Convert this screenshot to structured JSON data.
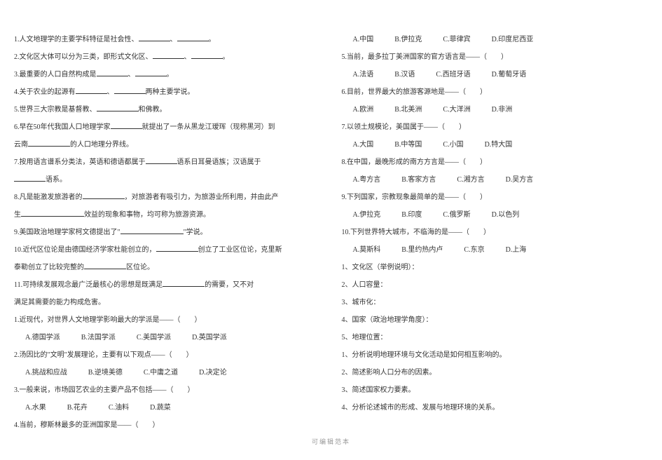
{
  "leftColumn": {
    "q1": "1.人文地理学的主要学科特征是社会性、",
    "q1_suffix": "。",
    "q2": "2.文化区大体可以分为三类，即形式文化区、",
    "q2_suffix": "。",
    "q3": "3.最重要的人口自然构成是",
    "q3_suffix": "。",
    "q4": "4.关于农业的起源有",
    "q4_suffix": "两种主要学说。",
    "q5": "5.世界三大宗教是基督教、",
    "q5_suffix": "和佛教。",
    "q6a": "6.早在50年代我国人口地理学家",
    "q6b": "就提出了一条从黑龙江瑷珲（现称黑河）到",
    "q6c": "云南",
    "q6d": "的人口地理分界线。",
    "q7a": "7.按用语言谱系分类法，英语和德语都属于",
    "q7b": "语系日耳曼语族；汉语属于",
    "q7c": "语系。",
    "q8a": "8.凡是能激发旅游者的",
    "q8b": "，对旅游者有吸引力，为旅游业所利用，并由此产",
    "q8c": "生",
    "q8d": "效益的现象和事物，均可称为旅游资源。",
    "q9a": "9.美国政治地理学家柯文德提出了\"",
    "q9b": "\"学说。",
    "q10a": "10.近代区位论是由德国经济学家杜能创立的，",
    "q10b": "创立了工业区位论，克里斯",
    "q10c": "泰勒创立了比较完整的",
    "q10d": "区位论。",
    "q11a": "11.可持续发展观念最广泛最核心的思想是既满足",
    "q11b": "的需要，又不对",
    "q11c": "满足其需要的能力构成危害。",
    "mc1": "1.近现代，对世界人文地理学影响最大的学派是——（　　）",
    "mc1_a": "A.德国学派",
    "mc1_b": "B.法国学派",
    "mc1_c": "C.美国学派",
    "mc1_d": "D.英国学派",
    "mc2": "2.汤因比的\"文明\"发展理论，主要有以下观点——（　　）",
    "mc2_a": "A.挑战和应战",
    "mc2_b": "B.逆境美德",
    "mc2_c": "C.中庸之道",
    "mc2_d": "D.决定论",
    "mc3": "3.一般来说，市场园艺农业的主要产品不包括——（　　）",
    "mc3_a": "A.水果",
    "mc3_b": "B.花卉",
    "mc3_c": "C.油料",
    "mc3_d": "D.蔬菜",
    "mc4": "4.当前，穆斯林最多的亚洲国家是——（　　）"
  },
  "rightColumn": {
    "mc4_a": "A.中国",
    "mc4_b": "B.伊拉克",
    "mc4_c": "C.菲律宾",
    "mc4_d": "D.印度尼西亚",
    "mc5": "5.当前，最多拉丁美洲国家的官方语言是——（　　）",
    "mc5_a": "A.法语",
    "mc5_b": "B.汉语",
    "mc5_c": "C.西班牙语",
    "mc5_d": "D.葡萄牙语",
    "mc6": "6.目前，世界最大的旅游客源地是——（　　）",
    "mc6_a": "A.欧洲",
    "mc6_b": "B.北美洲",
    "mc6_c": "C.大洋洲",
    "mc6_d": "D.非洲",
    "mc7": "7.以领土规模论，美国属于——（　　）",
    "mc7_a": "A.大国",
    "mc7_b": "B.中等国",
    "mc7_c": "C.小国",
    "mc7_d": "D.特大国",
    "mc8": "8.在中国，最晚形成的南方方言是——（　　）",
    "mc8_a": "A.粤方言",
    "mc8_b": "B.客家方言",
    "mc8_c": "C.湘方言",
    "mc8_d": "D.吴方言",
    "mc9": "9.下列国家，宗教现象最简单的是——（　　）",
    "mc9_a": "A.伊拉克",
    "mc9_b": "B.印度",
    "mc9_c": "C.俄罗斯",
    "mc9_d": "D.以色列",
    "mc10": "10.下列世界特大城市，不临海的是——（　　）",
    "mc10_a": "A.莫斯科",
    "mc10_b": "B.里约热内卢",
    "mc10_c": "C.东京",
    "mc10_d": "D.上海",
    "essay1": "1、文化区（举例说明）：",
    "essay2": "2、人口容量：",
    "essay3": "3、城市化：",
    "essay4": "4、国家（政治地理学角度）：",
    "essay5": "5、地理位置：",
    "essay6": "1、分析说明地理环境与文化活动是如何相互影响的。",
    "essay7": "2、简述影响人口分布的因素。",
    "essay8": "3、简述国家权力要素。",
    "essay9": "4、分析论述城市的形成、发展与地理环境的关系。"
  },
  "footer": "可编辑范本"
}
